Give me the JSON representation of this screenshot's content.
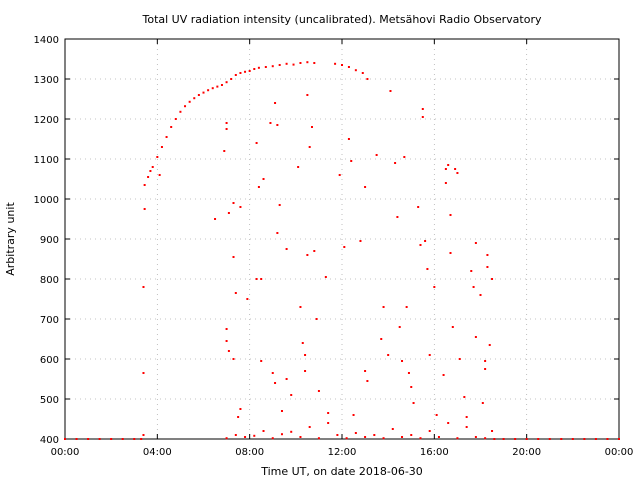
{
  "chart_data": {
    "type": "scatter",
    "title": "Total UV radiation intensity (uncalibrated). Metsähovi Radio Observatory",
    "xlabel": "Time UT, on date 2018-06-30",
    "ylabel": "Arbitrary unit",
    "x_unit": "hours UT",
    "xlim": [
      0,
      24
    ],
    "ylim": [
      400,
      1400
    ],
    "xticks": [
      {
        "value": 0,
        "label": "00:00"
      },
      {
        "value": 4,
        "label": "04:00"
      },
      {
        "value": 8,
        "label": "08:00"
      },
      {
        "value": 12,
        "label": "12:00"
      },
      {
        "value": 16,
        "label": "16:00"
      },
      {
        "value": 20,
        "label": "20:00"
      },
      {
        "value": 24,
        "label": "00:00"
      }
    ],
    "yticks": [
      {
        "value": 400,
        "label": "400"
      },
      {
        "value": 500,
        "label": "500"
      },
      {
        "value": 600,
        "label": "600"
      },
      {
        "value": 700,
        "label": "700"
      },
      {
        "value": 800,
        "label": "800"
      },
      {
        "value": 900,
        "label": "900"
      },
      {
        "value": 1000,
        "label": "1000"
      },
      {
        "value": 1100,
        "label": "1100"
      },
      {
        "value": 1200,
        "label": "1200"
      },
      {
        "value": 1300,
        "label": "1300"
      },
      {
        "value": 1400,
        "label": "1400"
      }
    ],
    "grid": true,
    "marker_color": "#ff0000",
    "series": [
      {
        "points": [
          [
            0.0,
            400
          ],
          [
            0.5,
            400
          ],
          [
            1.0,
            400
          ],
          [
            1.5,
            400
          ],
          [
            2.0,
            400
          ],
          [
            2.5,
            400
          ],
          [
            3.0,
            400
          ],
          [
            3.3,
            400
          ],
          [
            3.4,
            410
          ],
          [
            3.4,
            565
          ],
          [
            3.4,
            780
          ],
          [
            3.45,
            975
          ],
          [
            3.45,
            1035
          ],
          [
            3.6,
            1055
          ],
          [
            3.8,
            1080
          ],
          [
            4.0,
            1105
          ],
          [
            4.2,
            1130
          ],
          [
            4.4,
            1155
          ],
          [
            4.6,
            1180
          ],
          [
            4.8,
            1200
          ],
          [
            5.0,
            1218
          ],
          [
            5.2,
            1232
          ],
          [
            5.4,
            1243
          ],
          [
            5.6,
            1252
          ],
          [
            5.8,
            1260
          ],
          [
            6.0,
            1266
          ],
          [
            6.2,
            1272
          ],
          [
            6.4,
            1277
          ],
          [
            6.6,
            1281
          ],
          [
            6.8,
            1285
          ],
          [
            7.0,
            1292
          ],
          [
            7.2,
            1300
          ],
          [
            7.4,
            1310
          ],
          [
            7.6,
            1315
          ],
          [
            7.8,
            1318
          ],
          [
            8.0,
            1320
          ],
          [
            8.2,
            1325
          ],
          [
            8.4,
            1328
          ],
          [
            8.7,
            1330
          ],
          [
            9.0,
            1332
          ],
          [
            9.3,
            1335
          ],
          [
            9.6,
            1338
          ],
          [
            9.9,
            1336
          ],
          [
            10.2,
            1340
          ],
          [
            10.5,
            1342
          ],
          [
            10.8,
            1340
          ],
          [
            11.7,
            1338
          ],
          [
            12.0,
            1335
          ],
          [
            12.3,
            1330
          ],
          [
            12.6,
            1322
          ],
          [
            12.9,
            1315
          ],
          [
            13.1,
            1300
          ],
          [
            3.7,
            1070
          ],
          [
            4.1,
            1060
          ],
          [
            6.5,
            950
          ],
          [
            6.9,
            1120
          ],
          [
            7.0,
            1175
          ],
          [
            7.0,
            1190
          ],
          [
            7.1,
            965
          ],
          [
            7.3,
            990
          ],
          [
            7.3,
            855
          ],
          [
            7.4,
            765
          ],
          [
            7.6,
            980
          ],
          [
            7.9,
            750
          ],
          [
            8.3,
            1140
          ],
          [
            8.4,
            1030
          ],
          [
            8.6,
            1050
          ],
          [
            8.9,
            1190
          ],
          [
            9.2,
            1185
          ],
          [
            9.3,
            985
          ],
          [
            9.2,
            915
          ],
          [
            9.1,
            1240
          ],
          [
            7.0,
            675
          ],
          [
            7.0,
            645
          ],
          [
            7.1,
            620
          ],
          [
            7.3,
            600
          ],
          [
            7.5,
            455
          ],
          [
            7.6,
            475
          ],
          [
            8.3,
            800
          ],
          [
            8.5,
            800
          ],
          [
            8.5,
            595
          ],
          [
            9.0,
            565
          ],
          [
            9.1,
            540
          ],
          [
            9.4,
            470
          ],
          [
            9.6,
            875
          ],
          [
            9.6,
            550
          ],
          [
            9.8,
            510
          ],
          [
            10.1,
            1080
          ],
          [
            10.2,
            730
          ],
          [
            10.3,
            640
          ],
          [
            10.4,
            610
          ],
          [
            10.4,
            570
          ],
          [
            10.5,
            860
          ],
          [
            10.5,
            1260
          ],
          [
            10.6,
            1130
          ],
          [
            10.7,
            1180
          ],
          [
            10.8,
            870
          ],
          [
            10.9,
            700
          ],
          [
            11.0,
            520
          ],
          [
            11.3,
            805
          ],
          [
            11.4,
            465
          ],
          [
            11.9,
            1060
          ],
          [
            12.1,
            880
          ],
          [
            12.3,
            1150
          ],
          [
            12.4,
            1095
          ],
          [
            12.5,
            460
          ],
          [
            12.8,
            895
          ],
          [
            13.0,
            1030
          ],
          [
            13.0,
            570
          ],
          [
            13.1,
            545
          ],
          [
            13.5,
            1110
          ],
          [
            13.7,
            650
          ],
          [
            13.8,
            730
          ],
          [
            14.0,
            610
          ],
          [
            14.1,
            1270
          ],
          [
            14.3,
            1090
          ],
          [
            14.4,
            955
          ],
          [
            14.5,
            680
          ],
          [
            14.6,
            595
          ],
          [
            14.7,
            1105
          ],
          [
            14.8,
            730
          ],
          [
            14.9,
            565
          ],
          [
            15.0,
            530
          ],
          [
            15.1,
            490
          ],
          [
            15.3,
            980
          ],
          [
            15.4,
            885
          ],
          [
            15.5,
            1205
          ],
          [
            15.5,
            1225
          ],
          [
            15.6,
            895
          ],
          [
            15.7,
            825
          ],
          [
            15.8,
            610
          ],
          [
            16.0,
            780
          ],
          [
            16.1,
            460
          ],
          [
            16.4,
            560
          ],
          [
            16.5,
            1040
          ],
          [
            16.5,
            1075
          ],
          [
            16.6,
            1085
          ],
          [
            16.7,
            960
          ],
          [
            16.7,
            865
          ],
          [
            16.8,
            680
          ],
          [
            16.9,
            1075
          ],
          [
            17.0,
            1065
          ],
          [
            17.1,
            600
          ],
          [
            17.3,
            505
          ],
          [
            17.4,
            455
          ],
          [
            17.6,
            820
          ],
          [
            17.7,
            780
          ],
          [
            17.8,
            890
          ],
          [
            17.8,
            655
          ],
          [
            18.0,
            760
          ],
          [
            18.1,
            490
          ],
          [
            18.2,
            595
          ],
          [
            18.2,
            575
          ],
          [
            18.3,
            860
          ],
          [
            18.3,
            830
          ],
          [
            18.4,
            635
          ],
          [
            18.5,
            800
          ],
          [
            18.5,
            420
          ],
          [
            7.0,
            402
          ],
          [
            7.4,
            410
          ],
          [
            7.8,
            405
          ],
          [
            8.2,
            408
          ],
          [
            8.6,
            420
          ],
          [
            9.0,
            402
          ],
          [
            9.4,
            412
          ],
          [
            9.8,
            418
          ],
          [
            10.2,
            405
          ],
          [
            10.6,
            430
          ],
          [
            11.0,
            402
          ],
          [
            11.4,
            440
          ],
          [
            11.8,
            410
          ],
          [
            12.2,
            402
          ],
          [
            12.6,
            415
          ],
          [
            13.0,
            405
          ],
          [
            13.4,
            410
          ],
          [
            13.8,
            402
          ],
          [
            14.2,
            425
          ],
          [
            14.6,
            405
          ],
          [
            15.0,
            410
          ],
          [
            15.4,
            402
          ],
          [
            15.8,
            420
          ],
          [
            16.2,
            405
          ],
          [
            16.6,
            440
          ],
          [
            17.0,
            402
          ],
          [
            17.4,
            430
          ],
          [
            17.8,
            405
          ],
          [
            18.2,
            402
          ],
          [
            18.6,
            400
          ],
          [
            19.0,
            400
          ],
          [
            19.5,
            400
          ],
          [
            20.0,
            400
          ],
          [
            20.5,
            400
          ],
          [
            21.0,
            400
          ],
          [
            21.5,
            400
          ],
          [
            22.0,
            400
          ],
          [
            22.5,
            400
          ],
          [
            23.0,
            400
          ],
          [
            23.5,
            400
          ],
          [
            24.0,
            400
          ]
        ]
      }
    ]
  }
}
